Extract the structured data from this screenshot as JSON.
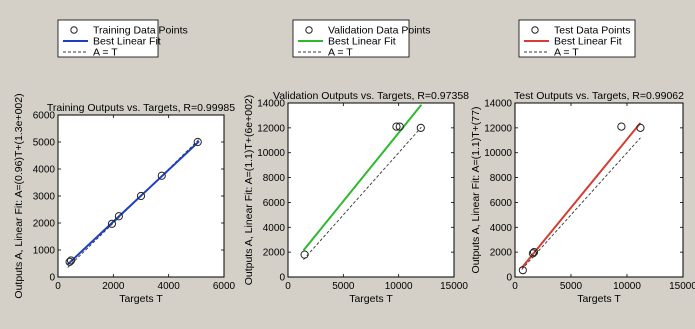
{
  "chart_data": [
    {
      "type": "scatter",
      "title": "Training Outputs vs. Targets, R=0.99985",
      "xlabel": "Targets T",
      "ylabel": "Outputs A,  Linear Fit: A=(0.96)T+(1.3e+002)",
      "xlim": [
        0,
        6000
      ],
      "ylim": [
        0,
        6000
      ],
      "xticks": [
        "0",
        "2000",
        "4000",
        "6000"
      ],
      "yticks": [
        "0",
        "1000",
        "2000",
        "3000",
        "4000",
        "5000",
        "6000"
      ],
      "legend": [
        "Training Data Points",
        "Best Linear Fit",
        "A = T"
      ],
      "legend_position": "top",
      "fit_color": "#1f3fbf",
      "points": [
        [
          420,
          560
        ],
        [
          470,
          610
        ],
        [
          1950,
          1970
        ],
        [
          2200,
          2250
        ],
        [
          3000,
          3000
        ],
        [
          3750,
          3750
        ],
        [
          5050,
          5000
        ]
      ],
      "fit": {
        "slope": 0.96,
        "intercept": 130,
        "x": [
          350,
          5100
        ]
      },
      "identity": {
        "x": [
          350,
          5100
        ]
      }
    },
    {
      "type": "scatter",
      "title": "Validation Outputs vs. Targets, R=0.97358",
      "xlabel": "Targets T",
      "ylabel": "Outputs A,  Linear Fit: A=(1.1)T+(6e+002)",
      "xlim": [
        0,
        15000
      ],
      "ylim": [
        0,
        14000
      ],
      "xticks": [
        "0",
        "5000",
        "10000",
        "15000"
      ],
      "yticks": [
        "0",
        "2000",
        "4000",
        "6000",
        "8000",
        "10000",
        "12000",
        "14000"
      ],
      "legend": [
        "Validation Data Points",
        "Best Linear Fit",
        "A = T"
      ],
      "legend_position": "top",
      "fit_color": "#2db82d",
      "points": [
        [
          1500,
          1800
        ],
        [
          9800,
          12100
        ],
        [
          10100,
          12100
        ],
        [
          12000,
          12000
        ]
      ],
      "fit": {
        "slope": 1.1,
        "intercept": 600,
        "x": [
          1400,
          12050
        ]
      },
      "identity": {
        "x": [
          1400,
          12050
        ]
      }
    },
    {
      "type": "scatter",
      "title": "Test Outputs vs. Targets, R=0.99062",
      "xlabel": "Targets T",
      "ylabel": "Outputs A,  Linear Fit: A=(1.1)T+(77)",
      "xlim": [
        0,
        15000
      ],
      "ylim": [
        0,
        14000
      ],
      "xticks": [
        "0",
        "5000",
        "10000",
        "15000"
      ],
      "yticks": [
        "0",
        "2000",
        "4000",
        "6000",
        "8000",
        "10000",
        "12000",
        "14000"
      ],
      "legend": [
        "Test Data Points",
        "Best Linear Fit",
        "A = T"
      ],
      "legend_position": "top",
      "fit_color": "#d43d2f",
      "points": [
        [
          700,
          550
        ],
        [
          1600,
          1900
        ],
        [
          1700,
          2000
        ],
        [
          9500,
          12100
        ],
        [
          11200,
          12000
        ]
      ],
      "fit": {
        "slope": 1.1,
        "intercept": 77,
        "x": [
          600,
          11200
        ]
      },
      "identity": {
        "x": [
          600,
          11200
        ]
      }
    }
  ]
}
